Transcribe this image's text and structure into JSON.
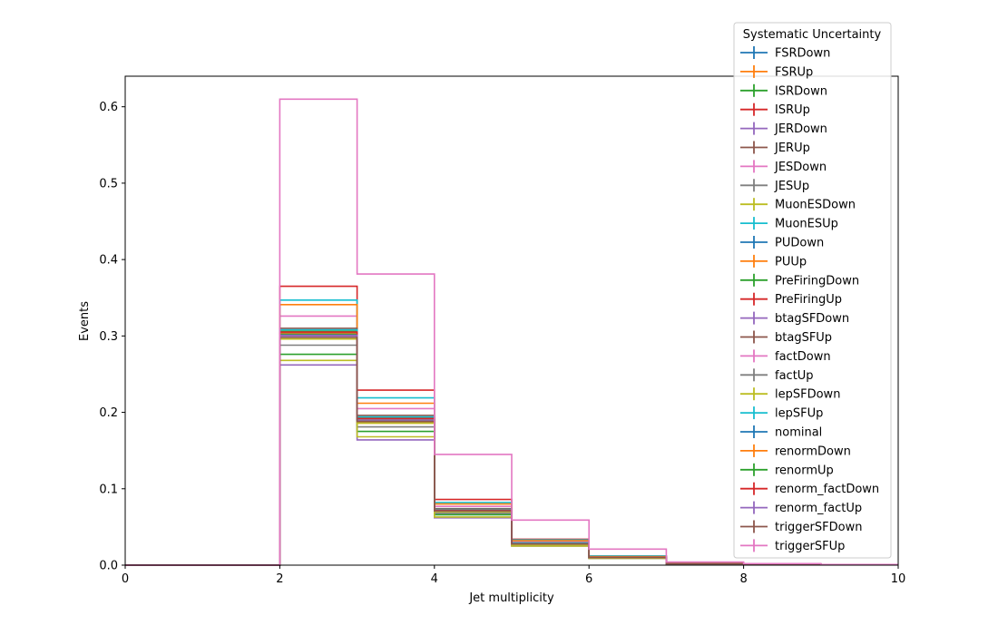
{
  "chart_data": {
    "type": "line",
    "step": true,
    "xlabel": "Jet multiplicity",
    "ylabel": "Events",
    "xlim": [
      0,
      10
    ],
    "ylim": [
      0,
      0.64
    ],
    "xticks": [
      "0",
      "2",
      "4",
      "6",
      "8",
      "10"
    ],
    "yticks": [
      "0.0",
      "0.1",
      "0.2",
      "0.3",
      "0.4",
      "0.5",
      "0.6"
    ],
    "grid": false,
    "legend": {
      "title": "Systematic Uncertainty",
      "placement": "top-right (outside, above plot)"
    },
    "bin_edges": [
      0,
      1,
      2,
      3,
      4,
      5,
      6,
      7,
      8,
      9,
      10
    ],
    "series": [
      {
        "name": "FSRDown",
        "color": "#1f77b4",
        "values": [
          0,
          0,
          0.302,
          0.19,
          0.072,
          0.028,
          0.01,
          0.002,
          0.001,
          0.0004
        ]
      },
      {
        "name": "FSRUp",
        "color": "#ff7f0e",
        "values": [
          0,
          0,
          0.296,
          0.186,
          0.07,
          0.027,
          0.01,
          0.002,
          0.001,
          0.0004
        ]
      },
      {
        "name": "ISRDown",
        "color": "#2ca02c",
        "values": [
          0,
          0,
          0.276,
          0.175,
          0.066,
          0.026,
          0.009,
          0.002,
          0.001,
          0.0004
        ]
      },
      {
        "name": "ISRUp",
        "color": "#d62728",
        "values": [
          0,
          0,
          0.365,
          0.229,
          0.086,
          0.034,
          0.012,
          0.003,
          0.001,
          0.0005
        ]
      },
      {
        "name": "JERDown",
        "color": "#9467bd",
        "values": [
          0,
          0,
          0.262,
          0.164,
          0.062,
          0.025,
          0.009,
          0.002,
          0.001,
          0.0004
        ]
      },
      {
        "name": "JERUp",
        "color": "#8c564b",
        "values": [
          0,
          0,
          0.306,
          0.192,
          0.072,
          0.028,
          0.01,
          0.002,
          0.001,
          0.0004
        ]
      },
      {
        "name": "JESDown",
        "color": "#e377c2",
        "values": [
          0,
          0,
          0.326,
          0.205,
          0.077,
          0.031,
          0.011,
          0.003,
          0.001,
          0.0004
        ]
      },
      {
        "name": "JESUp",
        "color": "#7f7f7f",
        "values": [
          0,
          0,
          0.288,
          0.181,
          0.068,
          0.027,
          0.01,
          0.002,
          0.001,
          0.0004
        ]
      },
      {
        "name": "MuonESDown",
        "color": "#bcbd22",
        "values": [
          0,
          0,
          0.268,
          0.168,
          0.063,
          0.025,
          0.009,
          0.002,
          0.001,
          0.0004
        ]
      },
      {
        "name": "MuonESUp",
        "color": "#17becf",
        "values": [
          0,
          0,
          0.347,
          0.219,
          0.082,
          0.033,
          0.012,
          0.003,
          0.001,
          0.0005
        ]
      },
      {
        "name": "PUDown",
        "color": "#1f77b4",
        "values": [
          0,
          0,
          0.3,
          0.19,
          0.071,
          0.028,
          0.01,
          0.002,
          0.001,
          0.0004
        ]
      },
      {
        "name": "PUUp",
        "color": "#ff7f0e",
        "values": [
          0,
          0,
          0.341,
          0.212,
          0.08,
          0.032,
          0.011,
          0.003,
          0.001,
          0.0005
        ]
      },
      {
        "name": "PreFiringDown",
        "color": "#2ca02c",
        "values": [
          0,
          0,
          0.306,
          0.193,
          0.073,
          0.029,
          0.01,
          0.002,
          0.001,
          0.0004
        ]
      },
      {
        "name": "PreFiringUp",
        "color": "#d62728",
        "values": [
          0,
          0,
          0.304,
          0.192,
          0.072,
          0.028,
          0.01,
          0.002,
          0.001,
          0.0004
        ]
      },
      {
        "name": "btagSFDown",
        "color": "#9467bd",
        "values": [
          0,
          0,
          0.3,
          0.189,
          0.071,
          0.028,
          0.01,
          0.002,
          0.001,
          0.0004
        ]
      },
      {
        "name": "btagSFUp",
        "color": "#8c564b",
        "values": [
          0,
          0,
          0.31,
          0.196,
          0.074,
          0.029,
          0.01,
          0.002,
          0.001,
          0.0004
        ]
      },
      {
        "name": "factDown",
        "color": "#e377c2",
        "values": [
          0,
          0,
          0.304,
          0.192,
          0.072,
          0.028,
          0.01,
          0.002,
          0.001,
          0.0004
        ]
      },
      {
        "name": "factUp",
        "color": "#7f7f7f",
        "values": [
          0,
          0,
          0.302,
          0.19,
          0.071,
          0.028,
          0.01,
          0.002,
          0.001,
          0.0004
        ]
      },
      {
        "name": "lepSFDown",
        "color": "#bcbd22",
        "values": [
          0,
          0,
          0.296,
          0.186,
          0.07,
          0.027,
          0.01,
          0.002,
          0.001,
          0.0004
        ]
      },
      {
        "name": "lepSFUp",
        "color": "#17becf",
        "values": [
          0,
          0,
          0.308,
          0.194,
          0.073,
          0.029,
          0.01,
          0.002,
          0.001,
          0.0004
        ]
      },
      {
        "name": "nominal",
        "color": "#1f77b4",
        "values": [
          0,
          0,
          0.303,
          0.191,
          0.072,
          0.028,
          0.01,
          0.002,
          0.001,
          0.0004
        ]
      },
      {
        "name": "renormDown",
        "color": "#ff7f0e",
        "values": [
          0,
          0,
          0.304,
          0.191,
          0.072,
          0.028,
          0.01,
          0.002,
          0.001,
          0.0004
        ]
      },
      {
        "name": "renormUp",
        "color": "#2ca02c",
        "values": [
          0,
          0,
          0.302,
          0.19,
          0.071,
          0.028,
          0.01,
          0.002,
          0.001,
          0.0004
        ]
      },
      {
        "name": "renorm_factDown",
        "color": "#d62728",
        "values": [
          0,
          0,
          0.305,
          0.192,
          0.072,
          0.028,
          0.01,
          0.002,
          0.001,
          0.0004
        ]
      },
      {
        "name": "renorm_factUp",
        "color": "#9467bd",
        "values": [
          0,
          0,
          0.301,
          0.19,
          0.071,
          0.028,
          0.01,
          0.002,
          0.001,
          0.0004
        ]
      },
      {
        "name": "triggerSFDown",
        "color": "#8c564b",
        "values": [
          0,
          0,
          0.298,
          0.188,
          0.071,
          0.028,
          0.01,
          0.002,
          0.001,
          0.0004
        ]
      },
      {
        "name": "triggerSFUp",
        "color": "#e377c2",
        "values": [
          0,
          0,
          0.61,
          0.381,
          0.145,
          0.059,
          0.021,
          0.004,
          0.002,
          0.0008
        ]
      }
    ]
  }
}
